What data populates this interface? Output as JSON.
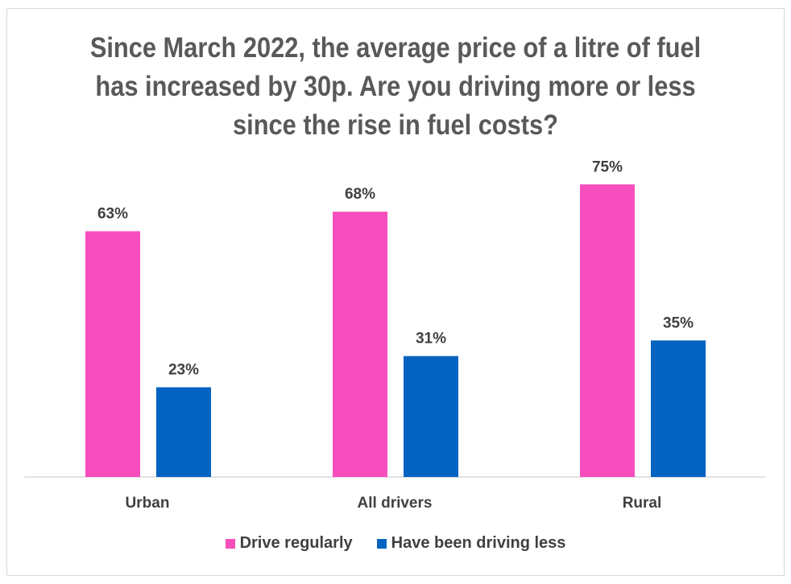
{
  "chart_data": {
    "type": "bar",
    "title": "Since March 2022, the average price of a litre of fuel has increased by 30p. Are you driving more or less since the rise in fuel costs?",
    "categories": [
      "Urban",
      "All drivers",
      "Rural"
    ],
    "series": [
      {
        "name": "Drive regularly",
        "values": [
          63,
          68,
          75
        ],
        "labels": [
          "63%",
          "68%",
          "75%"
        ],
        "color": "#f64fbd"
      },
      {
        "name": "Have been driving less",
        "values": [
          23,
          31,
          35
        ],
        "labels": [
          "23%",
          "31%",
          "35%"
        ],
        "color": "#0563c1"
      }
    ],
    "ylim": [
      0,
      80
    ],
    "grid": false,
    "legend": "bottom"
  }
}
